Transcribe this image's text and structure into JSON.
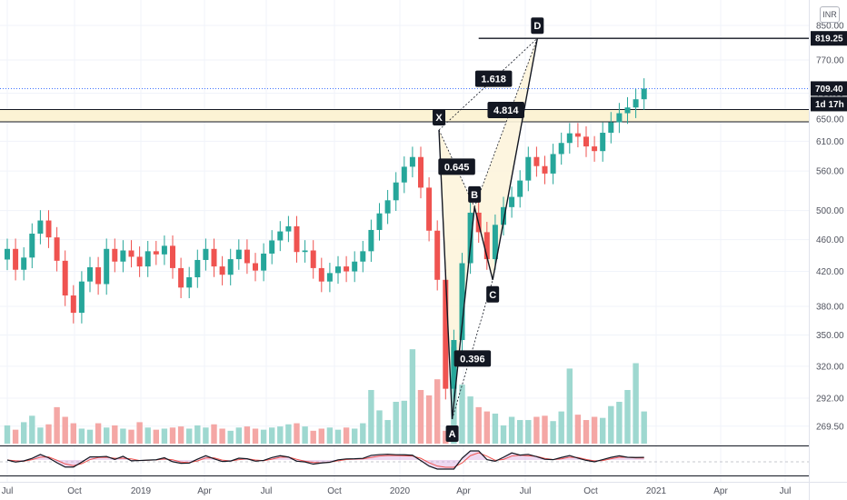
{
  "currency_badge": "INR",
  "colors": {
    "up": "#26a69a",
    "down": "#ef5350",
    "up_volume": "#9ed8d0",
    "down_volume": "#f4a7a5",
    "pattern_fill": "#fdf4dc",
    "zone_fill": "#fcf3d4",
    "line": "#131722",
    "grid": "#f0f3fa",
    "tag_bg": "#131722"
  },
  "price_axis": {
    "ticks": [
      "850.00",
      "770.00",
      "700.00",
      "650.00",
      "610.00",
      "560.00",
      "500.00",
      "460.00",
      "420.00",
      "380.00",
      "350.00",
      "320.00",
      "292.00",
      "269.50"
    ],
    "tags": {
      "top_line": "819.25",
      "last_price": "709.40",
      "countdown": "1d 17h"
    }
  },
  "time_axis": {
    "ticks": [
      "Jul",
      "Oct",
      "2019",
      "Apr",
      "Jul",
      "Oct",
      "2020",
      "Apr",
      "Jul",
      "Oct",
      "2021",
      "Apr",
      "Jul"
    ]
  },
  "pattern": {
    "points": [
      {
        "label": "X",
        "price": 630
      },
      {
        "label": "A",
        "price": 275
      },
      {
        "label": "B",
        "price": 505
      },
      {
        "label": "C",
        "price": 410
      },
      {
        "label": "D",
        "price": 819.25
      }
    ],
    "ratios": [
      "0.645",
      "0.396",
      "1.618",
      "4.814"
    ]
  },
  "zone": {
    "low": 645,
    "high": 668
  },
  "chart_data": {
    "type": "candlestick",
    "title": "",
    "series": [
      {
        "name": "",
        "close": [
          448,
          422,
          437,
          468,
          486,
          463,
          433,
          392,
          373,
          408,
          425,
          405,
          448,
          432,
          446,
          438,
          426,
          445,
          441,
          452,
          424,
          401,
          413,
          434,
          448,
          426,
          416,
          435,
          447,
          430,
          421,
          442,
          459,
          471,
          478,
          444,
          446,
          424,
          408,
          418,
          426,
          420,
          432,
          445,
          473,
          496,
          515,
          542,
          567,
          583,
          534,
          472,
          410,
          300,
          345,
          430,
          497,
          470,
          435,
          480,
          505,
          520,
          545,
          583,
          568,
          556,
          588,
          607,
          624,
          618,
          601,
          593,
          625,
          644,
          661,
          672,
          688,
          709.4
        ]
      }
    ],
    "volume_relative": [
      0.17,
      0.13,
      0.2,
      0.26,
      0.15,
      0.18,
      0.34,
      0.25,
      0.19,
      0.14,
      0.13,
      0.19,
      0.15,
      0.17,
      0.14,
      0.13,
      0.2,
      0.15,
      0.13,
      0.14,
      0.15,
      0.16,
      0.14,
      0.17,
      0.15,
      0.18,
      0.14,
      0.12,
      0.15,
      0.16,
      0.14,
      0.13,
      0.15,
      0.16,
      0.18,
      0.19,
      0.16,
      0.12,
      0.14,
      0.15,
      0.13,
      0.15,
      0.14,
      0.19,
      0.5,
      0.31,
      0.22,
      0.39,
      0.4,
      0.88,
      0.5,
      0.45,
      0.6,
      0.12,
      0.9,
      0.55,
      0.44,
      0.34,
      0.3,
      0.28,
      0.17,
      0.25,
      0.22,
      0.22,
      0.25,
      0.26,
      0.21,
      0.3,
      0.7,
      0.27,
      0.22,
      0.25,
      0.24,
      0.35,
      0.39,
      0.5,
      0.75,
      0.3
    ],
    "ylim": [
      255,
      905
    ],
    "y_scale": "log",
    "grid": true,
    "legend": "none"
  }
}
